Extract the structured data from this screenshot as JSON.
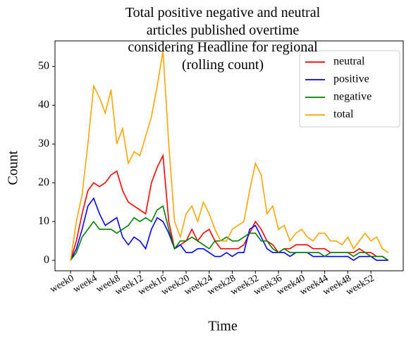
{
  "chart_data": {
    "type": "line",
    "title": "Total positive negative and neutral articles published overtime considering Headline for regional (rolling count)",
    "xlabel": "Time",
    "ylabel": "Count",
    "x": [
      0,
      1,
      2,
      3,
      4,
      5,
      6,
      7,
      8,
      9,
      10,
      11,
      12,
      13,
      14,
      15,
      16,
      17,
      18,
      19,
      20,
      21,
      22,
      23,
      24,
      25,
      26,
      27,
      28,
      29,
      30,
      31,
      32,
      33,
      34,
      35,
      36,
      37,
      38,
      39,
      40,
      41,
      42,
      43,
      44,
      45,
      46,
      47,
      48,
      49,
      50,
      51,
      52,
      53,
      54,
      55
    ],
    "series": [
      {
        "name": "neutral",
        "color": "#ff0000",
        "values": [
          0,
          5,
          12,
          18,
          20,
          19,
          20,
          22,
          23,
          18,
          15,
          14,
          13,
          12,
          20,
          24,
          27,
          10,
          3,
          4,
          5,
          8,
          5,
          7,
          8,
          5,
          3,
          3,
          3,
          3,
          4,
          7,
          10,
          8,
          5,
          4,
          2,
          3,
          3,
          4,
          4,
          4,
          3,
          3,
          3,
          2,
          2,
          2,
          2,
          2,
          3,
          2,
          2,
          1,
          1,
          0
        ]
      },
      {
        "name": "positive",
        "color": "#0000ff",
        "values": [
          0,
          3,
          8,
          14,
          16,
          12,
          9,
          10,
          11,
          6,
          4,
          6,
          5,
          3,
          8,
          11,
          10,
          7,
          3,
          4,
          2,
          2,
          3,
          3,
          2,
          1,
          1,
          2,
          1,
          2,
          2,
          8,
          9,
          6,
          3,
          2,
          2,
          2,
          1,
          2,
          2,
          2,
          1,
          1,
          1,
          1,
          1,
          1,
          1,
          0,
          1,
          1,
          1,
          0,
          0,
          0
        ]
      },
      {
        "name": "negative",
        "color": "#008000",
        "values": [
          0,
          2,
          6,
          8,
          10,
          8,
          8,
          8,
          7,
          8,
          9,
          11,
          10,
          11,
          10,
          13,
          14,
          8,
          3,
          5,
          5,
          6,
          5,
          4,
          3,
          5,
          5,
          6,
          5,
          5,
          6,
          7,
          7,
          5,
          5,
          3,
          2,
          3,
          2,
          2,
          2,
          2,
          2,
          2,
          1,
          2,
          2,
          2,
          2,
          1,
          2,
          2,
          1,
          1,
          1,
          0
        ]
      },
      {
        "name": "total",
        "color": "#ffa500",
        "values": [
          0,
          10,
          17,
          30,
          45,
          42,
          38,
          44,
          30,
          34,
          25,
          28,
          27,
          32,
          37,
          45,
          54,
          30,
          10,
          6,
          12,
          14,
          10,
          15,
          12,
          8,
          5,
          5,
          8,
          9,
          10,
          18,
          25,
          22,
          12,
          14,
          8,
          9,
          5,
          7,
          8,
          6,
          5,
          7,
          7,
          5,
          5,
          4,
          6,
          3,
          5,
          7,
          5,
          6,
          3,
          2
        ]
      }
    ],
    "xlim": [
      -2.7,
      57.6
    ],
    "xticks": [
      {
        "value": 0,
        "label": "week0"
      },
      {
        "value": 4,
        "label": "week4"
      },
      {
        "value": 8,
        "label": "week8"
      },
      {
        "value": 12,
        "label": "week12"
      },
      {
        "value": 16,
        "label": "week16"
      },
      {
        "value": 20,
        "label": "week20"
      },
      {
        "value": 24,
        "label": "week24"
      },
      {
        "value": 28,
        "label": "week28"
      },
      {
        "value": 32,
        "label": "week32"
      },
      {
        "value": 36,
        "label": "week36"
      },
      {
        "value": 40,
        "label": "week40"
      },
      {
        "value": 44,
        "label": "week44"
      },
      {
        "value": 48,
        "label": "week48"
      },
      {
        "value": 52,
        "label": "week52"
      }
    ],
    "ylim": [
      -2.7,
      56.6
    ],
    "yticks": [
      0,
      10,
      20,
      30,
      40,
      50
    ],
    "legend": "upper right"
  }
}
